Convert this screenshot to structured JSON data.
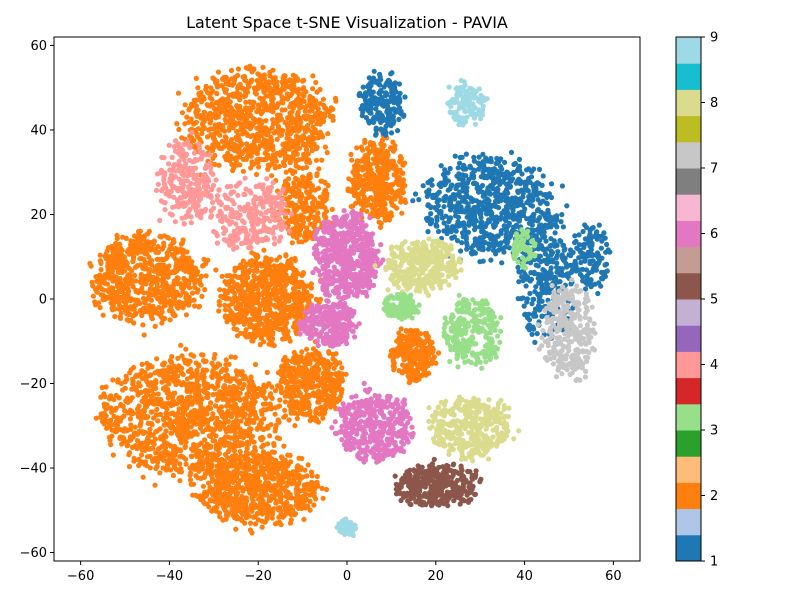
{
  "chart_data": {
    "type": "scatter",
    "title": "Latent Space t-SNE Visualization - PAVIA",
    "xlabel": "",
    "ylabel": "",
    "xlim": [
      -66,
      66
    ],
    "ylim": [
      -62,
      62
    ],
    "xticks": [
      -60,
      -40,
      -20,
      0,
      20,
      40,
      60
    ],
    "yticks": [
      -60,
      -40,
      -20,
      0,
      20,
      40,
      60
    ],
    "xtick_labels": [
      "−60",
      "−40",
      "−20",
      "0",
      "20",
      "40",
      "60"
    ],
    "ytick_labels": [
      "−60",
      "−40",
      "−20",
      "0",
      "20",
      "40",
      "60"
    ],
    "grid": false,
    "colorbar": {
      "min": 1,
      "max": 9,
      "ticks": [
        1,
        2,
        3,
        4,
        5,
        6,
        7,
        8,
        9
      ],
      "tick_labels": [
        "1",
        "2",
        "3",
        "4",
        "5",
        "6",
        "7",
        "8",
        "9"
      ],
      "colors": [
        "#1f77b4",
        "#aec7e8",
        "#ff7f0e",
        "#ffbb78",
        "#2ca02c",
        "#98df8a",
        "#d62728",
        "#ff9896",
        "#9467bd",
        "#c5b0d5",
        "#8c564b",
        "#c49c94",
        "#e377c2",
        "#f7b6d2",
        "#7f7f7f",
        "#c7c7c7",
        "#bcbd22",
        "#dbdb8d",
        "#17becf",
        "#9edae5"
      ]
    },
    "class_colors": {
      "1": "#1f77b4",
      "2": "#ff7f0e",
      "3": "#98df8a",
      "4": "#ff9896",
      "5": "#8c564b",
      "6": "#e377c2",
      "7": "#c7c7c7",
      "8": "#dbdb8d",
      "9": "#9edae5"
    },
    "clusters": [
      {
        "class": 2,
        "cx": -45,
        "cy": 5,
        "rx": 12,
        "ry": 10,
        "n": 700
      },
      {
        "class": 2,
        "cx": -35,
        "cy": -28,
        "rx": 20,
        "ry": 14,
        "n": 1200
      },
      {
        "class": 2,
        "cx": -20,
        "cy": -45,
        "rx": 13,
        "ry": 8,
        "n": 700
      },
      {
        "class": 2,
        "cx": -20,
        "cy": 42,
        "rx": 16,
        "ry": 12,
        "n": 900
      },
      {
        "class": 2,
        "cx": -18,
        "cy": 0,
        "rx": 10,
        "ry": 10,
        "n": 700
      },
      {
        "class": 2,
        "cx": 7,
        "cy": 28,
        "rx": 6,
        "ry": 10,
        "n": 400
      },
      {
        "class": 2,
        "cx": -8,
        "cy": -20,
        "rx": 7,
        "ry": 8,
        "n": 400
      },
      {
        "class": 2,
        "cx": 15,
        "cy": -13,
        "rx": 5,
        "ry": 6,
        "n": 250
      },
      {
        "class": 2,
        "cx": -10,
        "cy": 22,
        "rx": 6,
        "ry": 8,
        "n": 250
      },
      {
        "class": 4,
        "cx": -36,
        "cy": 28,
        "rx": 6,
        "ry": 10,
        "n": 250
      },
      {
        "class": 4,
        "cx": -22,
        "cy": 20,
        "rx": 9,
        "ry": 8,
        "n": 260
      },
      {
        "class": 1,
        "cx": 32,
        "cy": 22,
        "rx": 14,
        "ry": 11,
        "n": 700
      },
      {
        "class": 1,
        "cx": 8,
        "cy": 46,
        "rx": 5,
        "ry": 7,
        "n": 200
      },
      {
        "class": 1,
        "cx": 45,
        "cy": 5,
        "rx": 6,
        "ry": 15,
        "n": 300
      },
      {
        "class": 1,
        "cx": 55,
        "cy": 10,
        "rx": 4,
        "ry": 8,
        "n": 120
      },
      {
        "class": 9,
        "cx": 27,
        "cy": 46,
        "rx": 4,
        "ry": 5,
        "n": 120
      },
      {
        "class": 9,
        "cx": 0,
        "cy": -54,
        "rx": 2,
        "ry": 2,
        "n": 60
      },
      {
        "class": 6,
        "cx": 0,
        "cy": 10,
        "rx": 7,
        "ry": 10,
        "n": 550
      },
      {
        "class": 6,
        "cx": -4,
        "cy": -6,
        "rx": 6,
        "ry": 5,
        "n": 250
      },
      {
        "class": 6,
        "cx": 6,
        "cy": -30,
        "rx": 8,
        "ry": 8,
        "n": 400
      },
      {
        "class": 8,
        "cx": 17,
        "cy": 8,
        "rx": 8,
        "ry": 6,
        "n": 350
      },
      {
        "class": 8,
        "cx": 28,
        "cy": -30,
        "rx": 9,
        "ry": 7,
        "n": 350
      },
      {
        "class": 3,
        "cx": 28,
        "cy": -8,
        "rx": 6,
        "ry": 8,
        "n": 250
      },
      {
        "class": 3,
        "cx": 12,
        "cy": -2,
        "rx": 4,
        "ry": 3,
        "n": 120
      },
      {
        "class": 3,
        "cx": 40,
        "cy": 12,
        "rx": 3,
        "ry": 4,
        "n": 60
      },
      {
        "class": 7,
        "cx": 50,
        "cy": -8,
        "rx": 6,
        "ry": 11,
        "n": 300
      },
      {
        "class": 5,
        "cx": 20,
        "cy": -44,
        "rx": 9,
        "ry": 5,
        "n": 350
      }
    ]
  }
}
